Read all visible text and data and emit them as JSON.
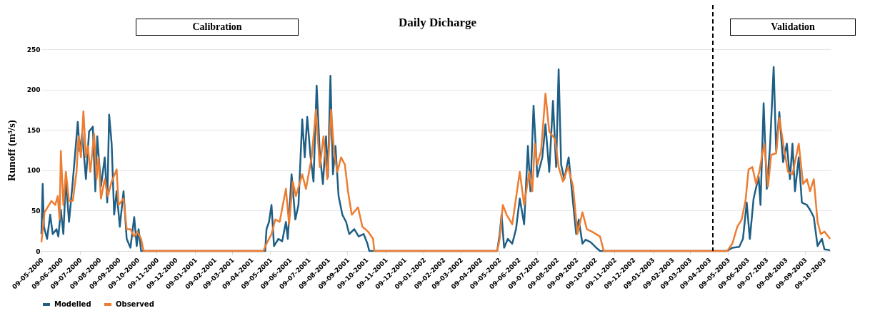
{
  "chart_data": {
    "type": "line",
    "title": "Daily Dicharge",
    "ylabel": "Runoff (m³/s)",
    "xlim": [
      "2000-05-09",
      "2003-10-20"
    ],
    "xticks": [
      {
        "value": "2000-05-09",
        "label": "09-05-2000"
      },
      {
        "value": "2000-06-09",
        "label": "09-06-2000"
      },
      {
        "value": "2000-07-09",
        "label": "09-07-2000"
      },
      {
        "value": "2000-08-09",
        "label": "09-08-2000"
      },
      {
        "value": "2000-09-09",
        "label": "09-09-2000"
      },
      {
        "value": "2000-10-09",
        "label": "09-10-2000"
      },
      {
        "value": "2000-11-09",
        "label": "09-11-2000"
      },
      {
        "value": "2000-12-09",
        "label": "09-12-2000"
      },
      {
        "value": "2001-01-09",
        "label": "09-01-2001"
      },
      {
        "value": "2001-02-09",
        "label": "09-02-2001"
      },
      {
        "value": "2001-03-09",
        "label": "09-03-2001"
      },
      {
        "value": "2001-04-09",
        "label": "09-04-2001"
      },
      {
        "value": "2001-05-09",
        "label": "09-05-2001"
      },
      {
        "value": "2001-06-09",
        "label": "09-06-2001"
      },
      {
        "value": "2001-07-09",
        "label": "09-07-2001"
      },
      {
        "value": "2001-08-09",
        "label": "09-08-2001"
      },
      {
        "value": "2001-09-09",
        "label": "09-09-2001"
      },
      {
        "value": "2001-10-09",
        "label": "09-10-2001"
      },
      {
        "value": "2001-11-09",
        "label": "09-11-2001"
      },
      {
        "value": "2001-12-09",
        "label": "09-12-2001"
      },
      {
        "value": "2002-01-09",
        "label": "09-01-2002"
      },
      {
        "value": "2002-02-09",
        "label": "09-02-2002"
      },
      {
        "value": "2002-03-09",
        "label": "09-03-2002"
      },
      {
        "value": "2002-04-09",
        "label": "09-04-2002"
      },
      {
        "value": "2002-05-09",
        "label": "09-05-2002"
      },
      {
        "value": "2002-06-09",
        "label": "09-06-2002"
      },
      {
        "value": "2002-07-09",
        "label": "09-07-2002"
      },
      {
        "value": "2002-08-09",
        "label": "09-08-2002"
      },
      {
        "value": "2002-09-09",
        "label": "09-09-2002"
      },
      {
        "value": "2002-10-09",
        "label": "09-10-2002"
      },
      {
        "value": "2002-11-09",
        "label": "09-11-2002"
      },
      {
        "value": "2002-12-09",
        "label": "09-12-2002"
      },
      {
        "value": "2003-01-09",
        "label": "09-01-2003"
      },
      {
        "value": "2003-02-09",
        "label": "09-02-2003"
      },
      {
        "value": "2003-03-09",
        "label": "09-03-2003"
      },
      {
        "value": "2003-04-09",
        "label": "09-04-2003"
      },
      {
        "value": "2003-05-09",
        "label": "09-05-2003"
      },
      {
        "value": "2003-06-09",
        "label": "09-06-2003"
      },
      {
        "value": "2003-07-09",
        "label": "09-07-2003"
      },
      {
        "value": "2003-08-09",
        "label": "09-08-2003"
      },
      {
        "value": "2003-09-09",
        "label": "09-09-2003"
      },
      {
        "value": "2003-10-09",
        "label": "09-10-2003"
      }
    ],
    "ylim": [
      0,
      250
    ],
    "yticks": [
      0,
      50,
      100,
      150,
      200,
      250
    ],
    "grid": "y",
    "legend": "bottom",
    "ref_lines": [
      {
        "axis": "x",
        "value": "2003-04-15",
        "color": "#000000",
        "line_style": "dashed"
      }
    ],
    "annotations": [
      "Calibration",
      "Validation"
    ],
    "series": [
      {
        "name": "Modelled",
        "color": "#1f5f85",
        "x": [
          "2000-05-09",
          "2000-05-11",
          "2000-05-13",
          "2000-05-18",
          "2000-05-23",
          "2000-05-27",
          "2000-06-02",
          "2000-06-05",
          "2000-06-09",
          "2000-06-13",
          "2000-06-17",
          "2000-06-22",
          "2000-06-28",
          "2000-07-06",
          "2000-07-09",
          "2000-07-13",
          "2000-07-19",
          "2000-07-24",
          "2000-07-30",
          "2000-08-03",
          "2000-08-06",
          "2000-08-12",
          "2000-08-18",
          "2000-08-22",
          "2000-08-25",
          "2000-08-29",
          "2000-09-02",
          "2000-09-06",
          "2000-09-11",
          "2000-09-17",
          "2000-09-22",
          "2000-09-28",
          "2000-10-04",
          "2000-10-08",
          "2000-10-11",
          "2000-10-15",
          "2001-05-01",
          "2001-05-03",
          "2001-05-07",
          "2001-05-11",
          "2001-05-15",
          "2001-05-22",
          "2001-05-28",
          "2001-06-03",
          "2001-06-06",
          "2001-06-12",
          "2001-06-18",
          "2001-06-23",
          "2001-06-29",
          "2001-07-03",
          "2001-07-07",
          "2001-07-12",
          "2001-07-17",
          "2001-07-22",
          "2001-07-27",
          "2001-08-01",
          "2001-08-06",
          "2001-08-09",
          "2001-08-13",
          "2001-08-17",
          "2001-08-21",
          "2001-08-26",
          "2001-09-01",
          "2001-09-07",
          "2001-09-12",
          "2001-09-20",
          "2001-09-27",
          "2001-10-05",
          "2001-10-11",
          "2001-10-14",
          "2002-05-06",
          "2002-05-10",
          "2002-05-13",
          "2002-05-17",
          "2002-05-23",
          "2002-05-30",
          "2002-06-05",
          "2002-06-11",
          "2002-06-18",
          "2002-06-24",
          "2002-06-28",
          "2002-07-03",
          "2002-07-09",
          "2002-07-17",
          "2002-07-22",
          "2002-07-28",
          "2002-08-03",
          "2002-08-08",
          "2002-08-12",
          "2002-08-16",
          "2002-08-21",
          "2002-08-28",
          "2002-09-04",
          "2002-09-09",
          "2002-09-13",
          "2002-09-19",
          "2002-09-24",
          "2002-10-02",
          "2002-10-11",
          "2002-10-17",
          "2003-05-08",
          "2003-05-16",
          "2003-05-27",
          "2003-06-02",
          "2003-06-08",
          "2003-06-13",
          "2003-06-19",
          "2003-06-27",
          "2003-06-30",
          "2003-07-05",
          "2003-07-10",
          "2003-07-15",
          "2003-07-21",
          "2003-07-25",
          "2003-07-30",
          "2003-08-05",
          "2003-08-11",
          "2003-08-16",
          "2003-08-20",
          "2003-08-24",
          "2003-08-30",
          "2003-09-04",
          "2003-09-12",
          "2003-09-17",
          "2003-09-23",
          "2003-09-29",
          "2003-10-06",
          "2003-10-10",
          "2003-10-19"
        ],
        "values": [
          21,
          83,
          30,
          15,
          45,
          21,
          27,
          18,
          51,
          21,
          89,
          36,
          86,
          160,
          124,
          145,
          89,
          148,
          154,
          74,
          142,
          80,
          116,
          60,
          169,
          133,
          45,
          74,
          30,
          74,
          15,
          4,
          42,
          6,
          27,
          0,
          0,
          27,
          36,
          57,
          6,
          15,
          12,
          36,
          15,
          95,
          39,
          57,
          163,
          116,
          166,
          119,
          86,
          205,
          121,
          83,
          142,
          92,
          217,
          95,
          130,
          68,
          45,
          36,
          21,
          27,
          18,
          21,
          9,
          0,
          0,
          21,
          45,
          4,
          15,
          9,
          27,
          65,
          33,
          130,
          74,
          180,
          92,
          116,
          157,
          98,
          186,
          104,
          225,
          107,
          89,
          116,
          60,
          21,
          39,
          9,
          14,
          11,
          4,
          0,
          0,
          4,
          5,
          15,
          60,
          15,
          65,
          92,
          57,
          183,
          77,
          127,
          228,
          124,
          172,
          110,
          133,
          89,
          133,
          74,
          116,
          60,
          57,
          51,
          42,
          6,
          15,
          2,
          1
        ]
      },
      {
        "name": "Observed",
        "color": "#ed7d31",
        "x": [
          "2000-05-09",
          "2000-05-14",
          "2000-05-25",
          "2000-05-31",
          "2000-06-04",
          "2000-06-07",
          "2000-06-09",
          "2000-06-13",
          "2000-06-17",
          "2000-06-22",
          "2000-06-28",
          "2000-07-04",
          "2000-07-07",
          "2000-07-11",
          "2000-07-15",
          "2000-07-19",
          "2000-07-22",
          "2000-07-26",
          "2000-08-01",
          "2000-08-05",
          "2000-08-08",
          "2000-08-12",
          "2000-08-18",
          "2000-08-23",
          "2000-08-29",
          "2000-09-06",
          "2000-09-09",
          "2000-09-17",
          "2000-09-22",
          "2000-09-28",
          "2000-10-04",
          "2000-10-09",
          "2000-10-15",
          "2000-10-19",
          "2001-04-28",
          "2001-05-03",
          "2001-05-11",
          "2001-05-17",
          "2001-05-24",
          "2001-06-03",
          "2001-06-08",
          "2001-06-14",
          "2001-06-19",
          "2001-06-29",
          "2001-07-05",
          "2001-07-14",
          "2001-07-21",
          "2001-07-27",
          "2001-08-02",
          "2001-08-08",
          "2001-08-14",
          "2001-08-19",
          "2001-08-24",
          "2001-08-30",
          "2001-09-05",
          "2001-09-10",
          "2001-09-16",
          "2001-09-26",
          "2001-10-03",
          "2001-10-12",
          "2001-10-20",
          "2001-10-22",
          "2002-05-06",
          "2002-05-10",
          "2002-05-15",
          "2002-05-21",
          "2002-05-30",
          "2002-06-11",
          "2002-06-18",
          "2002-06-26",
          "2002-07-01",
          "2002-07-05",
          "2002-07-09",
          "2002-07-15",
          "2002-07-22",
          "2002-07-28",
          "2002-08-06",
          "2002-08-12",
          "2002-08-19",
          "2002-08-27",
          "2002-09-04",
          "2002-09-11",
          "2002-09-19",
          "2002-09-26",
          "2002-10-04",
          "2002-10-17",
          "2002-10-23",
          "2003-05-08",
          "2003-05-16",
          "2003-05-24",
          "2003-05-31",
          "2003-06-06",
          "2003-06-11",
          "2003-06-17",
          "2003-06-23",
          "2003-06-28",
          "2003-07-06",
          "2003-07-12",
          "2003-07-17",
          "2003-07-25",
          "2003-07-30",
          "2003-08-07",
          "2003-08-13",
          "2003-08-20",
          "2003-08-30",
          "2003-09-06",
          "2003-09-12",
          "2003-09-17",
          "2003-09-23",
          "2003-09-29",
          "2003-10-04",
          "2003-10-10",
          "2003-10-19"
        ],
        "values": [
          11,
          48,
          62,
          57,
          68,
          39,
          124,
          57,
          98,
          62,
          62,
          98,
          142,
          116,
          173,
          116,
          130,
          98,
          145,
          89,
          116,
          65,
          89,
          68,
          86,
          101,
          57,
          65,
          27,
          27,
          18,
          24,
          15,
          0,
          0,
          9,
          21,
          39,
          36,
          77,
          33,
          86,
          68,
          95,
          77,
          116,
          175,
          104,
          142,
          89,
          175,
          121,
          98,
          116,
          107,
          74,
          45,
          54,
          30,
          24,
          15,
          0,
          0,
          15,
          57,
          45,
          33,
          98,
          57,
          98,
          74,
          133,
          107,
          124,
          195,
          148,
          139,
          104,
          86,
          104,
          80,
          21,
          48,
          27,
          24,
          18,
          0,
          0,
          9,
          30,
          39,
          62,
          101,
          104,
          83,
          98,
          133,
          80,
          119,
          121,
          165,
          124,
          98,
          95,
          133,
          83,
          89,
          74,
          89,
          36,
          21,
          24,
          15
        ]
      }
    ]
  }
}
